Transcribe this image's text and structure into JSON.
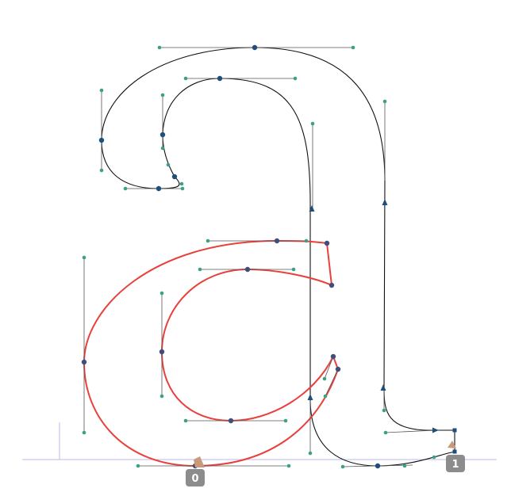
{
  "badges": {
    "start_outer": "0",
    "start_inner": "1"
  },
  "colors": {
    "background": "#ffffff",
    "outline": "#111111",
    "selected_outline": "#e8413c",
    "oncurve_node": "#1e4f7a",
    "offcurve_handle": "#3f9e86",
    "handle_line": "#555555",
    "metrics_line": "#b8b8f0",
    "badge_fill": "#8c8c8c",
    "start_marker": "#c89a7a"
  },
  "icons": {
    "node": "circle-node",
    "direction": "triangle-arrow",
    "start": "start-point-marker"
  }
}
